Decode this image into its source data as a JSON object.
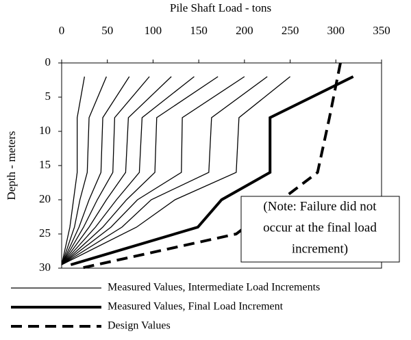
{
  "chart_data": {
    "type": "profile",
    "title": "Pile Shaft Load - tons",
    "y_label": "Depth - meters",
    "xlim": [
      0,
      350
    ],
    "xticks": [
      0,
      50,
      100,
      150,
      200,
      250,
      300,
      350
    ],
    "ylim": [
      0,
      30
    ],
    "yticks": [
      0,
      5,
      10,
      15,
      20,
      25,
      30
    ],
    "y_inverted": true,
    "x_axis_position": "top",
    "annotation": [
      "(Note: Failure did not",
      "occur at the final load",
      "increment)"
    ],
    "series": [
      {
        "name": "Measured Values, Intermediate Load Increments",
        "color": "#000000",
        "width": 1.3,
        "dash": "none",
        "depths": [
          2,
          8,
          16,
          20,
          24,
          29.5
        ],
        "lines": [
          [
            25,
            17,
            17,
            13,
            9,
            0
          ],
          [
            49,
            30,
            28,
            20,
            14,
            0
          ],
          [
            74,
            45,
            43,
            30,
            19,
            0
          ],
          [
            96,
            58,
            56,
            39,
            24,
            0
          ],
          [
            120,
            73,
            70,
            49,
            30,
            0
          ],
          [
            145,
            88,
            85,
            60,
            37,
            0
          ],
          [
            171,
            104,
            102,
            71,
            45,
            0
          ],
          [
            200,
            132,
            131,
            83,
            54,
            0
          ],
          [
            225,
            164,
            161,
            98,
            66,
            0
          ],
          [
            250,
            194,
            191,
            124,
            82,
            0
          ]
        ]
      },
      {
        "name": "Measured Values, Final Load Increment",
        "color": "#000000",
        "width": 4,
        "dash": "none",
        "depths": [
          2,
          8,
          16,
          20,
          24,
          29.5
        ],
        "lines": [
          [
            319,
            228,
            228,
            175,
            149,
            10
          ]
        ]
      },
      {
        "name": "Design Values",
        "color": "#000000",
        "width": 4,
        "dash": "16 9",
        "depths": [
          0,
          8,
          16,
          25,
          30
        ],
        "lines": [
          [
            305,
            293,
            280,
            191,
            21
          ]
        ]
      }
    ]
  }
}
